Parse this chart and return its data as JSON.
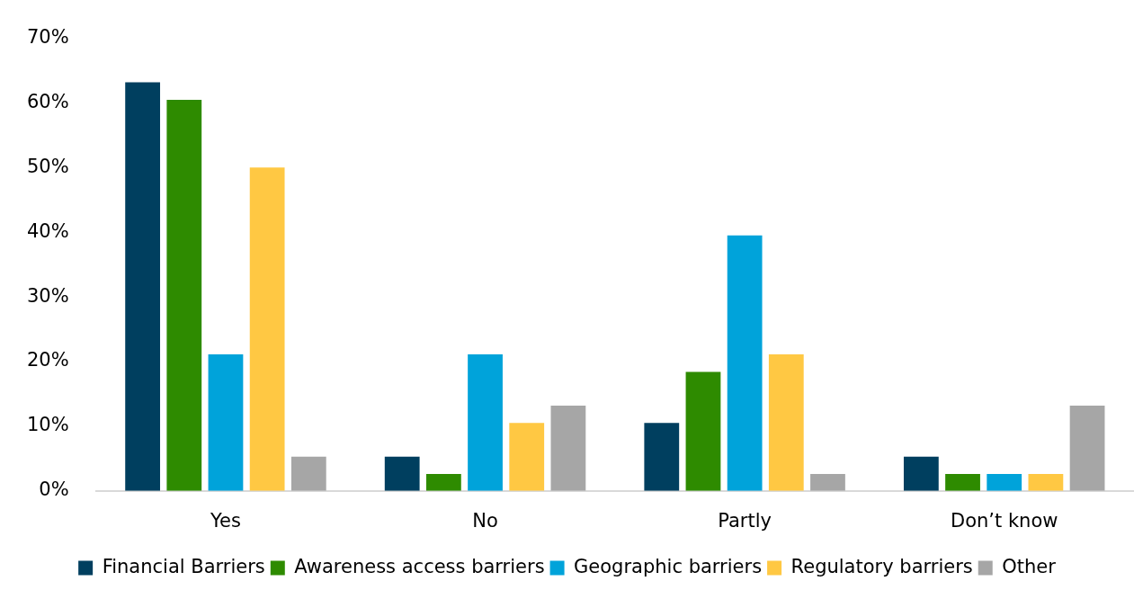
{
  "chart_data": {
    "type": "bar",
    "categories": [
      "Yes",
      "No",
      "Partly",
      "Don’t know"
    ],
    "series": [
      {
        "name": "Financial Barriers",
        "color": "#003f5f",
        "values": [
          63.2,
          5.3,
          10.5,
          5.3
        ]
      },
      {
        "name": "Awareness access barriers",
        "color": "#2e8b00",
        "values": [
          60.5,
          2.6,
          18.4,
          2.6
        ]
      },
      {
        "name": "Geographic barriers",
        "color": "#00a3da",
        "values": [
          21.1,
          21.1,
          39.5,
          2.6
        ]
      },
      {
        "name": "Regulatory barriers",
        "color": "#ffc843",
        "values": [
          50,
          10.5,
          21.1,
          2.6
        ]
      },
      {
        "name": "Other",
        "color": "#a6a6a6",
        "values": [
          5.3,
          13.2,
          2.6,
          13.2
        ]
      }
    ],
    "ylim": [
      0,
      70
    ],
    "yticks": [
      {
        "value": 0,
        "label": "0%"
      },
      {
        "value": 10,
        "label": "10%"
      },
      {
        "value": 20,
        "label": "20%"
      },
      {
        "value": 30,
        "label": "30%"
      },
      {
        "value": 40,
        "label": "40%"
      },
      {
        "value": 50,
        "label": "50%"
      },
      {
        "value": 60,
        "label": "60%"
      },
      {
        "value": 70,
        "label": "70%"
      }
    ],
    "grid": false,
    "legend": "bottom"
  }
}
